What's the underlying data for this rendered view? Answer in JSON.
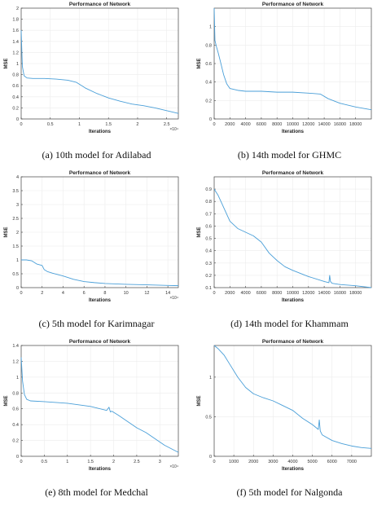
{
  "figure": {
    "panels": [
      {
        "id": "a",
        "caption": "(a) 10th model for Adilabad"
      },
      {
        "id": "b",
        "caption": "(b) 14th model for GHMC"
      },
      {
        "id": "c",
        "caption": "(c) 5th model for Karimnagar"
      },
      {
        "id": "d",
        "caption": "(d) 14th model for Khammam"
      },
      {
        "id": "e",
        "caption": "(e) 8th model for Medchal"
      },
      {
        "id": "f",
        "caption": "(f) 5th model for Nalgonda"
      }
    ]
  },
  "colors": {
    "line": "#4a9fd8",
    "axis": "#444444",
    "grid": "#ececec"
  },
  "chart_data": [
    {
      "type": "line",
      "title": "Performance of Network",
      "xlabel": "Iterations",
      "ylabel": "MSE",
      "xlim": [
        0,
        27000
      ],
      "ylim": [
        0,
        2
      ],
      "xticks": [
        0,
        5000,
        10000,
        15000,
        20000,
        25000
      ],
      "xticklabels": [
        "0",
        "0.5",
        "1",
        "1.5",
        "2",
        "2.5"
      ],
      "x_multiplier": "×10⁴",
      "yticks": [
        0,
        0.2,
        0.4,
        0.6,
        0.8,
        1,
        1.2,
        1.4,
        1.6,
        1.8,
        2
      ],
      "yticklabels": [
        "0",
        "0.2",
        "0.4",
        "0.6",
        "0.8",
        "1",
        "1.2",
        "1.4",
        "1.6",
        "1.8",
        "2"
      ],
      "x": [
        0,
        200,
        500,
        1000,
        2000,
        4000,
        6000,
        8000,
        9500,
        11000,
        13000,
        15000,
        17000,
        19000,
        21000,
        23000,
        25000,
        27000
      ],
      "y": [
        1.6,
        0.95,
        0.78,
        0.74,
        0.73,
        0.73,
        0.72,
        0.7,
        0.66,
        0.56,
        0.46,
        0.38,
        0.32,
        0.27,
        0.24,
        0.2,
        0.15,
        0.1
      ]
    },
    {
      "type": "line",
      "title": "Performance of Network",
      "xlabel": "Iterations",
      "ylabel": "MSE",
      "xlim": [
        0,
        20000
      ],
      "ylim": [
        0,
        1.2
      ],
      "xticks": [
        0,
        2000,
        4000,
        6000,
        8000,
        10000,
        12000,
        14000,
        16000,
        18000
      ],
      "xticklabels": [
        "0",
        "2000",
        "4000",
        "6000",
        "8000",
        "10000",
        "12000",
        "14000",
        "16000",
        "18000"
      ],
      "x_multiplier": "",
      "yticks": [
        0,
        0.2,
        0.4,
        0.6,
        0.8,
        1
      ],
      "yticklabels": [
        "0",
        "0.2",
        "0.4",
        "0.6",
        "0.8",
        "1"
      ],
      "x": [
        0,
        100,
        300,
        500,
        800,
        1200,
        1600,
        2000,
        3000,
        4000,
        6000,
        8000,
        10000,
        12000,
        13500,
        14500,
        16000,
        18000,
        20000
      ],
      "y": [
        1.2,
        0.85,
        0.78,
        0.72,
        0.62,
        0.48,
        0.38,
        0.33,
        0.31,
        0.3,
        0.3,
        0.29,
        0.29,
        0.28,
        0.27,
        0.22,
        0.17,
        0.13,
        0.1
      ]
    },
    {
      "type": "line",
      "title": "Performance of Network",
      "xlabel": "Iterations",
      "ylabel": "MSE",
      "xlim": [
        0,
        150000
      ],
      "ylim": [
        0,
        4
      ],
      "xticks": [
        0,
        20000,
        40000,
        60000,
        80000,
        100000,
        120000,
        140000
      ],
      "xticklabels": [
        "0",
        "2",
        "4",
        "6",
        "8",
        "10",
        "12",
        "14"
      ],
      "x_multiplier": "×10⁴",
      "yticks": [
        0,
        0.5,
        1,
        1.5,
        2,
        2.5,
        3,
        3.5,
        4
      ],
      "yticklabels": [
        "0",
        "0.5",
        "1",
        "1.5",
        "2",
        "2.5",
        "3",
        "3.5",
        "4"
      ],
      "x": [
        0,
        5000,
        10000,
        15000,
        20000,
        22000,
        25000,
        30000,
        40000,
        50000,
        60000,
        70000,
        80000,
        100000,
        120000,
        140000,
        150000
      ],
      "y": [
        1.0,
        1.0,
        0.97,
        0.85,
        0.8,
        0.65,
        0.58,
        0.52,
        0.42,
        0.3,
        0.22,
        0.18,
        0.15,
        0.12,
        0.1,
        0.08,
        0.07
      ]
    },
    {
      "type": "line",
      "title": "Performance of Network",
      "xlabel": "Iterations",
      "ylabel": "MSE",
      "xlim": [
        0,
        20000
      ],
      "ylim": [
        0.1,
        1
      ],
      "xticks": [
        0,
        2000,
        4000,
        6000,
        8000,
        10000,
        12000,
        14000,
        16000,
        18000
      ],
      "xticklabels": [
        "0",
        "2000",
        "4000",
        "6000",
        "8000",
        "10000",
        "12000",
        "14000",
        "16000",
        "18000"
      ],
      "x_multiplier": "",
      "yticks": [
        0.1,
        0.2,
        0.3,
        0.4,
        0.5,
        0.6,
        0.7,
        0.8,
        0.9
      ],
      "yticklabels": [
        "0.1",
        "0.2",
        "0.3",
        "0.4",
        "0.5",
        "0.6",
        "0.7",
        "0.8",
        "0.9"
      ],
      "x": [
        0,
        500,
        1000,
        2000,
        3000,
        4000,
        5000,
        6000,
        7000,
        8000,
        9000,
        10000,
        12000,
        14000,
        14600,
        14700,
        14800,
        15000,
        16000,
        18000,
        20000
      ],
      "y": [
        0.9,
        0.85,
        0.78,
        0.64,
        0.58,
        0.55,
        0.52,
        0.47,
        0.38,
        0.32,
        0.27,
        0.24,
        0.19,
        0.15,
        0.14,
        0.2,
        0.15,
        0.135,
        0.125,
        0.115,
        0.1
      ]
    },
    {
      "type": "line",
      "title": "Performance of Network",
      "xlabel": "Iterations",
      "ylabel": "MSE",
      "xlim": [
        0,
        34000
      ],
      "ylim": [
        0,
        1.4
      ],
      "xticks": [
        0,
        5000,
        10000,
        15000,
        20000,
        25000,
        30000
      ],
      "xticklabels": [
        "0",
        "0.5",
        "1",
        "1.5",
        "2",
        "2.5",
        "3"
      ],
      "x_multiplier": "×10⁴",
      "yticks": [
        0,
        0.2,
        0.4,
        0.6,
        0.8,
        1,
        1.2,
        1.4
      ],
      "yticklabels": [
        "0",
        "0.2",
        "0.4",
        "0.6",
        "0.8",
        "1",
        "1.2",
        "1.4"
      ],
      "x": [
        0,
        300,
        700,
        1200,
        2000,
        5000,
        10000,
        15000,
        18500,
        19000,
        19300,
        19600,
        21000,
        23000,
        25000,
        27000,
        29000,
        31000,
        33000,
        34000
      ],
      "y": [
        1.25,
        0.95,
        0.78,
        0.72,
        0.7,
        0.69,
        0.67,
        0.63,
        0.58,
        0.62,
        0.56,
        0.57,
        0.52,
        0.44,
        0.36,
        0.3,
        0.22,
        0.14,
        0.08,
        0.05
      ]
    },
    {
      "type": "line",
      "title": "Performance of Network",
      "xlabel": "Iterations",
      "ylabel": "MSE",
      "xlim": [
        0,
        8000
      ],
      "ylim": [
        0,
        1.4
      ],
      "xticks": [
        0,
        1000,
        2000,
        3000,
        4000,
        5000,
        6000,
        7000
      ],
      "xticklabels": [
        "0",
        "1000",
        "2000",
        "3000",
        "4000",
        "5000",
        "6000",
        "7000"
      ],
      "x_multiplier": "",
      "yticks": [
        0,
        0.5,
        1
      ],
      "yticklabels": [
        "0",
        "0.5",
        "1"
      ],
      "x": [
        0,
        200,
        500,
        800,
        1200,
        1600,
        2000,
        2500,
        3000,
        3500,
        4000,
        4500,
        5000,
        5300,
        5350,
        5400,
        5500,
        6000,
        6500,
        7000,
        7500,
        8000
      ],
      "y": [
        1.4,
        1.36,
        1.28,
        1.16,
        1.0,
        0.87,
        0.79,
        0.74,
        0.7,
        0.64,
        0.58,
        0.48,
        0.4,
        0.34,
        0.46,
        0.32,
        0.27,
        0.2,
        0.16,
        0.13,
        0.11,
        0.1
      ]
    }
  ]
}
